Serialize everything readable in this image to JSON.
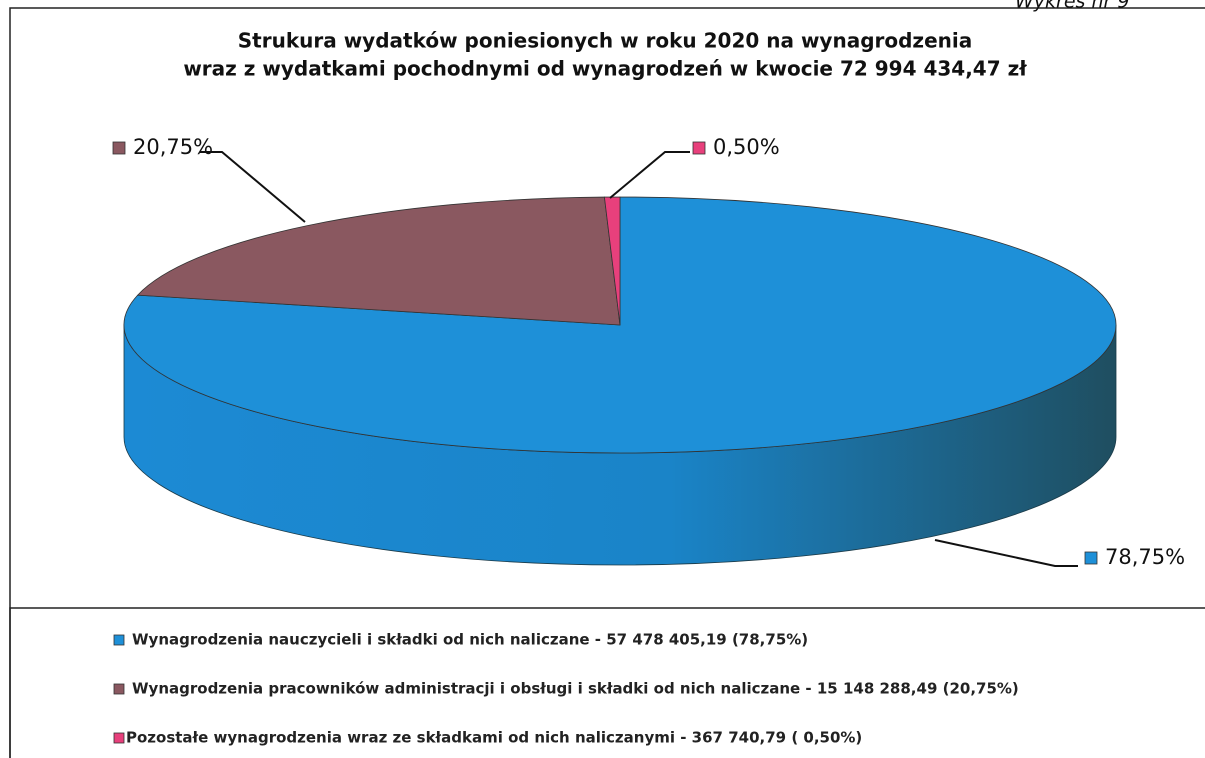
{
  "corner_label": "Wykres nr 9",
  "chart_data": {
    "type": "pie",
    "title_lines": [
      "Strukura wydatków poniesionych w roku 2020 na wynagrodzenia",
      "wraz z wydatkami pochodnymi od wynagrodzeń w kwocie 72 994 434,47 zł"
    ],
    "categories": [
      "Wynagrodzenia nauczycieli i składki od nich naliczane - 57 478 405,19 (78,75%)",
      "Wynagrodzenia pracowników administracji i obsługi i składki od nich naliczane - 15 148 288,49 (20,75%)",
      "Pozostałe wynagrodzenia wraz ze składkami od nich naliczanymi - 367 740,79 ( 0,50%)"
    ],
    "values": [
      78.75,
      20.75,
      0.5
    ],
    "value_labels": [
      "78,75%",
      "20,75%",
      "0,50%"
    ],
    "colors": [
      "#1e90d8",
      "#8a5860",
      "#e8407c"
    ],
    "legend": "bottom"
  }
}
